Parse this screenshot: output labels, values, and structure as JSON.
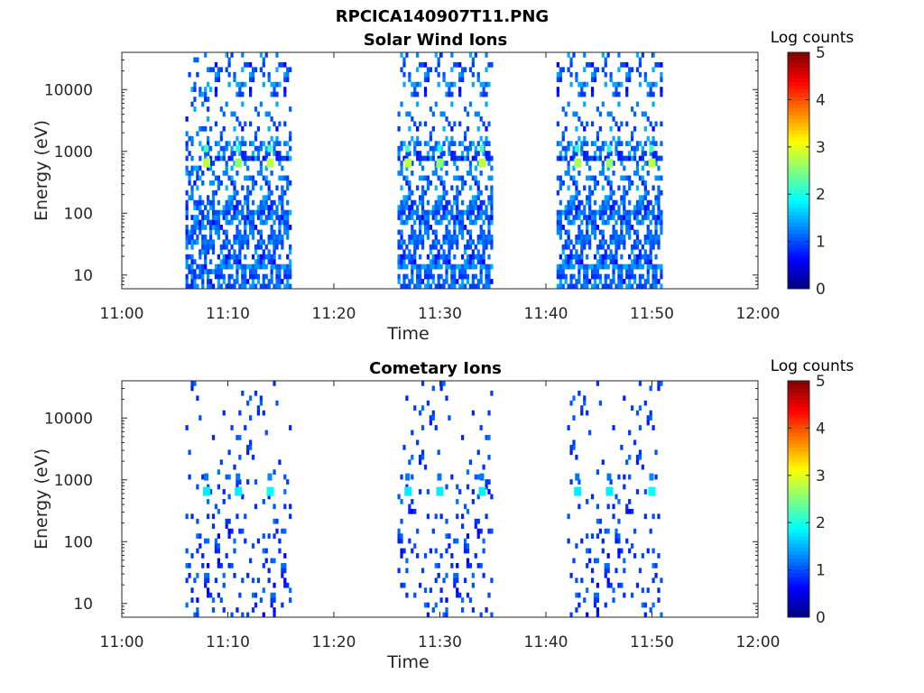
{
  "figure": {
    "title": "RPCICA140907T11.PNG"
  },
  "chart_data": [
    {
      "type": "heatmap",
      "title": "Solar Wind Ions",
      "xlabel": "Time",
      "ylabel": "Energy (eV)",
      "x_ticks": [
        "11:00",
        "11:10",
        "11:20",
        "11:30",
        "11:40",
        "11:50",
        "12:00"
      ],
      "x_range": [
        "11:00",
        "12:00"
      ],
      "y_scale": "log",
      "y_ticks": [
        "10",
        "100",
        "1000",
        "10000"
      ],
      "y_range": [
        6,
        40000
      ],
      "colorbar": {
        "label": "Log counts",
        "ticks": [
          "0",
          "1",
          "2",
          "3",
          "4",
          "5"
        ],
        "range": [
          0,
          5
        ],
        "colormap": "jet"
      },
      "grid": false,
      "active_intervals": [
        [
          "11:06",
          "11:16"
        ],
        [
          "11:26",
          "11:35"
        ],
        [
          "11:41",
          "11:51"
        ]
      ],
      "peaks": [
        {
          "time": "11:08",
          "energy": 650,
          "log_counts": 2.8
        },
        {
          "time": "11:11",
          "energy": 650,
          "log_counts": 2.6
        },
        {
          "time": "11:14",
          "energy": 650,
          "log_counts": 2.8
        },
        {
          "time": "11:27",
          "energy": 650,
          "log_counts": 2.8
        },
        {
          "time": "11:30",
          "energy": 650,
          "log_counts": 2.6
        },
        {
          "time": "11:34",
          "energy": 650,
          "log_counts": 2.8
        },
        {
          "time": "11:43",
          "energy": 650,
          "log_counts": 2.7
        },
        {
          "time": "11:46",
          "energy": 650,
          "log_counts": 2.6
        },
        {
          "time": "11:50",
          "energy": 650,
          "log_counts": 2.8
        }
      ]
    },
    {
      "type": "heatmap",
      "title": "Cometary Ions",
      "xlabel": "Time",
      "ylabel": "Energy (eV)",
      "x_ticks": [
        "11:00",
        "11:10",
        "11:20",
        "11:30",
        "11:40",
        "11:50",
        "12:00"
      ],
      "x_range": [
        "11:00",
        "12:00"
      ],
      "y_scale": "log",
      "y_ticks": [
        "10",
        "100",
        "1000",
        "10000"
      ],
      "y_range": [
        6,
        40000
      ],
      "colorbar": {
        "label": "Log counts",
        "ticks": [
          "0",
          "1",
          "2",
          "3",
          "4",
          "5"
        ],
        "range": [
          0,
          5
        ],
        "colormap": "jet"
      },
      "grid": false,
      "active_intervals": [
        [
          "11:06",
          "11:16"
        ],
        [
          "11:26",
          "11:35"
        ],
        [
          "11:42",
          "11:51"
        ]
      ],
      "peaks": [
        {
          "time": "11:08",
          "energy": 650,
          "log_counts": 1.8
        },
        {
          "time": "11:11",
          "energy": 650,
          "log_counts": 1.8
        },
        {
          "time": "11:14",
          "energy": 650,
          "log_counts": 1.9
        },
        {
          "time": "11:27",
          "energy": 650,
          "log_counts": 1.8
        },
        {
          "time": "11:30",
          "energy": 650,
          "log_counts": 1.8
        },
        {
          "time": "11:34",
          "energy": 650,
          "log_counts": 1.8
        },
        {
          "time": "11:43",
          "energy": 650,
          "log_counts": 1.8
        },
        {
          "time": "11:46",
          "energy": 650,
          "log_counts": 1.8
        },
        {
          "time": "11:50",
          "energy": 650,
          "log_counts": 1.9
        }
      ]
    }
  ]
}
